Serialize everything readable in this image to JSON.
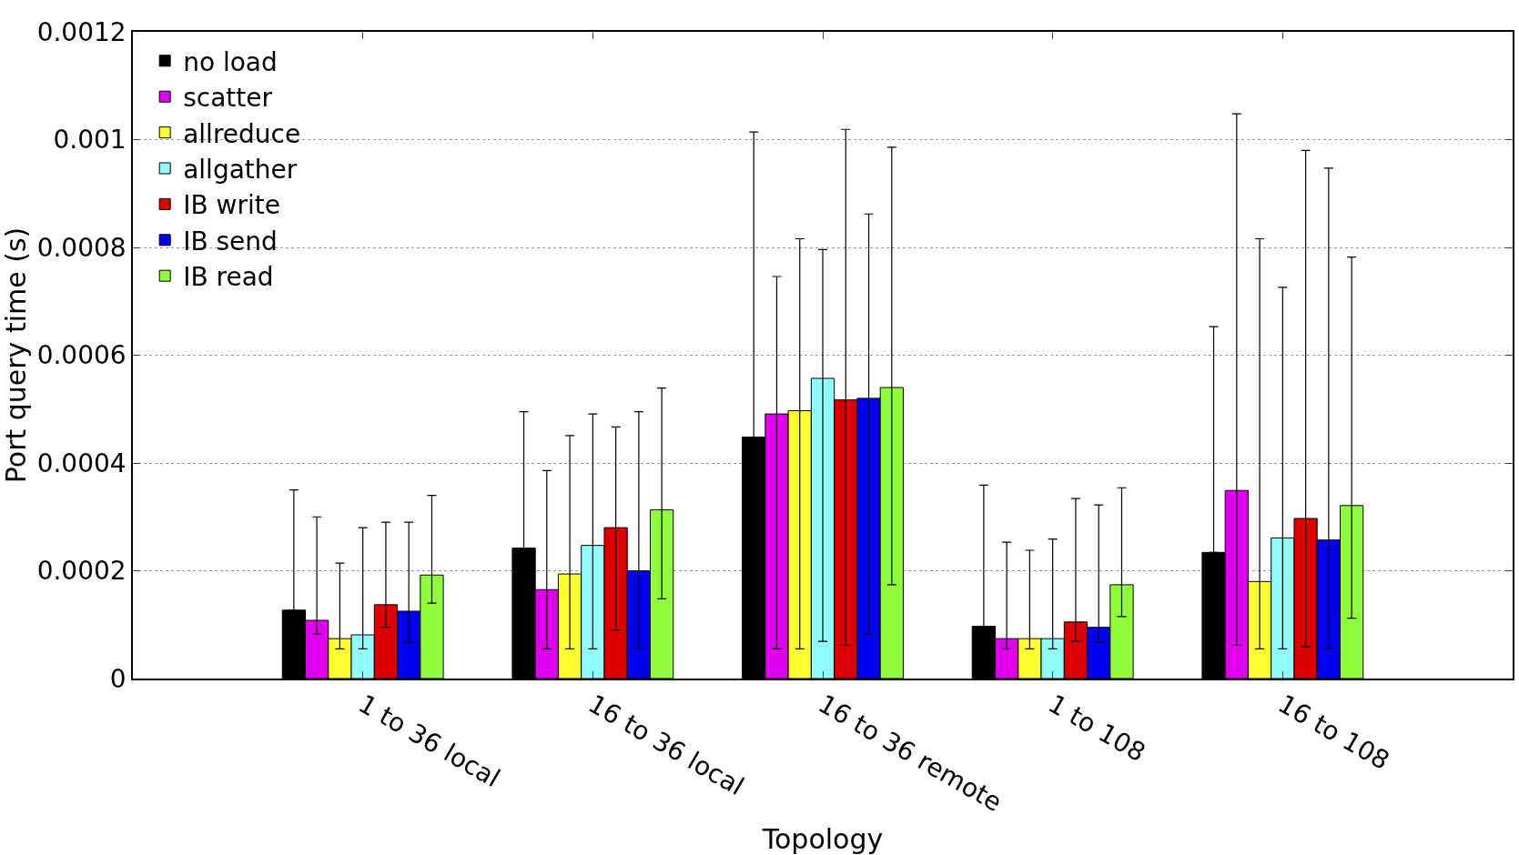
{
  "chart_data": {
    "type": "bar",
    "xlabel": "Topology",
    "ylabel": "Port query time (s)",
    "categories": [
      "1 to 36 local",
      "16 to 36 local",
      "16 to 36 remote",
      "1 to 108",
      "16 to 108"
    ],
    "ylim": [
      0,
      0.0012
    ],
    "yticks": [
      0,
      0.0002,
      0.0004,
      0.0006,
      0.0008,
      0.001,
      0.0012
    ],
    "grid": "y",
    "legend": "top left",
    "series": [
      {
        "name": "no load",
        "color": "#000000",
        "values": [
          0.000127,
          0.000242,
          0.000448,
          9.7e-05,
          0.000234
        ],
        "errors": [
          [
            0.000127,
            0.00035
          ],
          [
            0.000242,
            0.000495
          ],
          [
            0.000448,
            0.001014
          ],
          [
            9.7e-05,
            0.000359
          ],
          [
            0.000234,
            0.000653
          ]
        ]
      },
      {
        "name": "scatter",
        "color": "#e000f0",
        "values": [
          0.000108,
          0.000165,
          0.000491,
          7.4e-05,
          0.000349
        ],
        "errors": [
          [
            8.3e-05,
            0.0003
          ],
          [
            5.5e-05,
            0.000386
          ],
          [
            5.5e-05,
            0.000746
          ],
          [
            5.5e-05,
            0.000253
          ],
          [
            6.2e-05,
            0.001048
          ]
        ]
      },
      {
        "name": "allreduce",
        "color": "#ffff30",
        "values": [
          7.4e-05,
          0.000194,
          0.000497,
          7.4e-05,
          0.00018
        ],
        "errors": [
          [
            5.5e-05,
            0.000214
          ],
          [
            5.5e-05,
            0.000451
          ],
          [
            5.5e-05,
            0.000816
          ],
          [
            5.5e-05,
            0.000238
          ],
          [
            5.5e-05,
            0.000816
          ]
        ]
      },
      {
        "name": "allgather",
        "color": "#90fcfc",
        "values": [
          8.1e-05,
          0.000247,
          0.000557,
          7.4e-05,
          0.000261
        ],
        "errors": [
          [
            5.5e-05,
            0.00028
          ],
          [
            5.5e-05,
            0.000491
          ],
          [
            6.9e-05,
            0.000796
          ],
          [
            5.5e-05,
            0.000259
          ],
          [
            5.5e-05,
            0.000726
          ]
        ]
      },
      {
        "name": "IB write",
        "color": "#dc0000",
        "values": [
          0.000137,
          0.00028,
          0.000517,
          0.000105,
          0.000297
        ],
        "errors": [
          [
            9.5e-05,
            0.00029
          ],
          [
            9e-05,
            0.000467
          ],
          [
            6.2e-05,
            0.001019
          ],
          [
            6.9e-05,
            0.000334
          ],
          [
            5.9e-05,
            0.00098
          ]
        ]
      },
      {
        "name": "IB send",
        "color": "#0000f0",
        "values": [
          0.000125,
          0.0002,
          0.00052,
          9.5e-05,
          0.000257
        ],
        "errors": [
          [
            6.7e-05,
            0.00029
          ],
          [
            5.5e-05,
            0.000495
          ],
          [
            8.2e-05,
            0.000862
          ],
          [
            6.7e-05,
            0.000322
          ],
          [
            5.5e-05,
            0.000947
          ]
        ]
      },
      {
        "name": "IB read",
        "color": "#90fc3c",
        "values": [
          0.000192,
          0.000313,
          0.00054,
          0.000174,
          0.000321
        ],
        "errors": [
          [
            0.00014,
            0.00034
          ],
          [
            0.000148,
            0.000539
          ],
          [
            0.000174,
            0.000986
          ],
          [
            0.000115,
            0.000354
          ],
          [
            0.000112,
            0.000782
          ]
        ]
      }
    ]
  }
}
